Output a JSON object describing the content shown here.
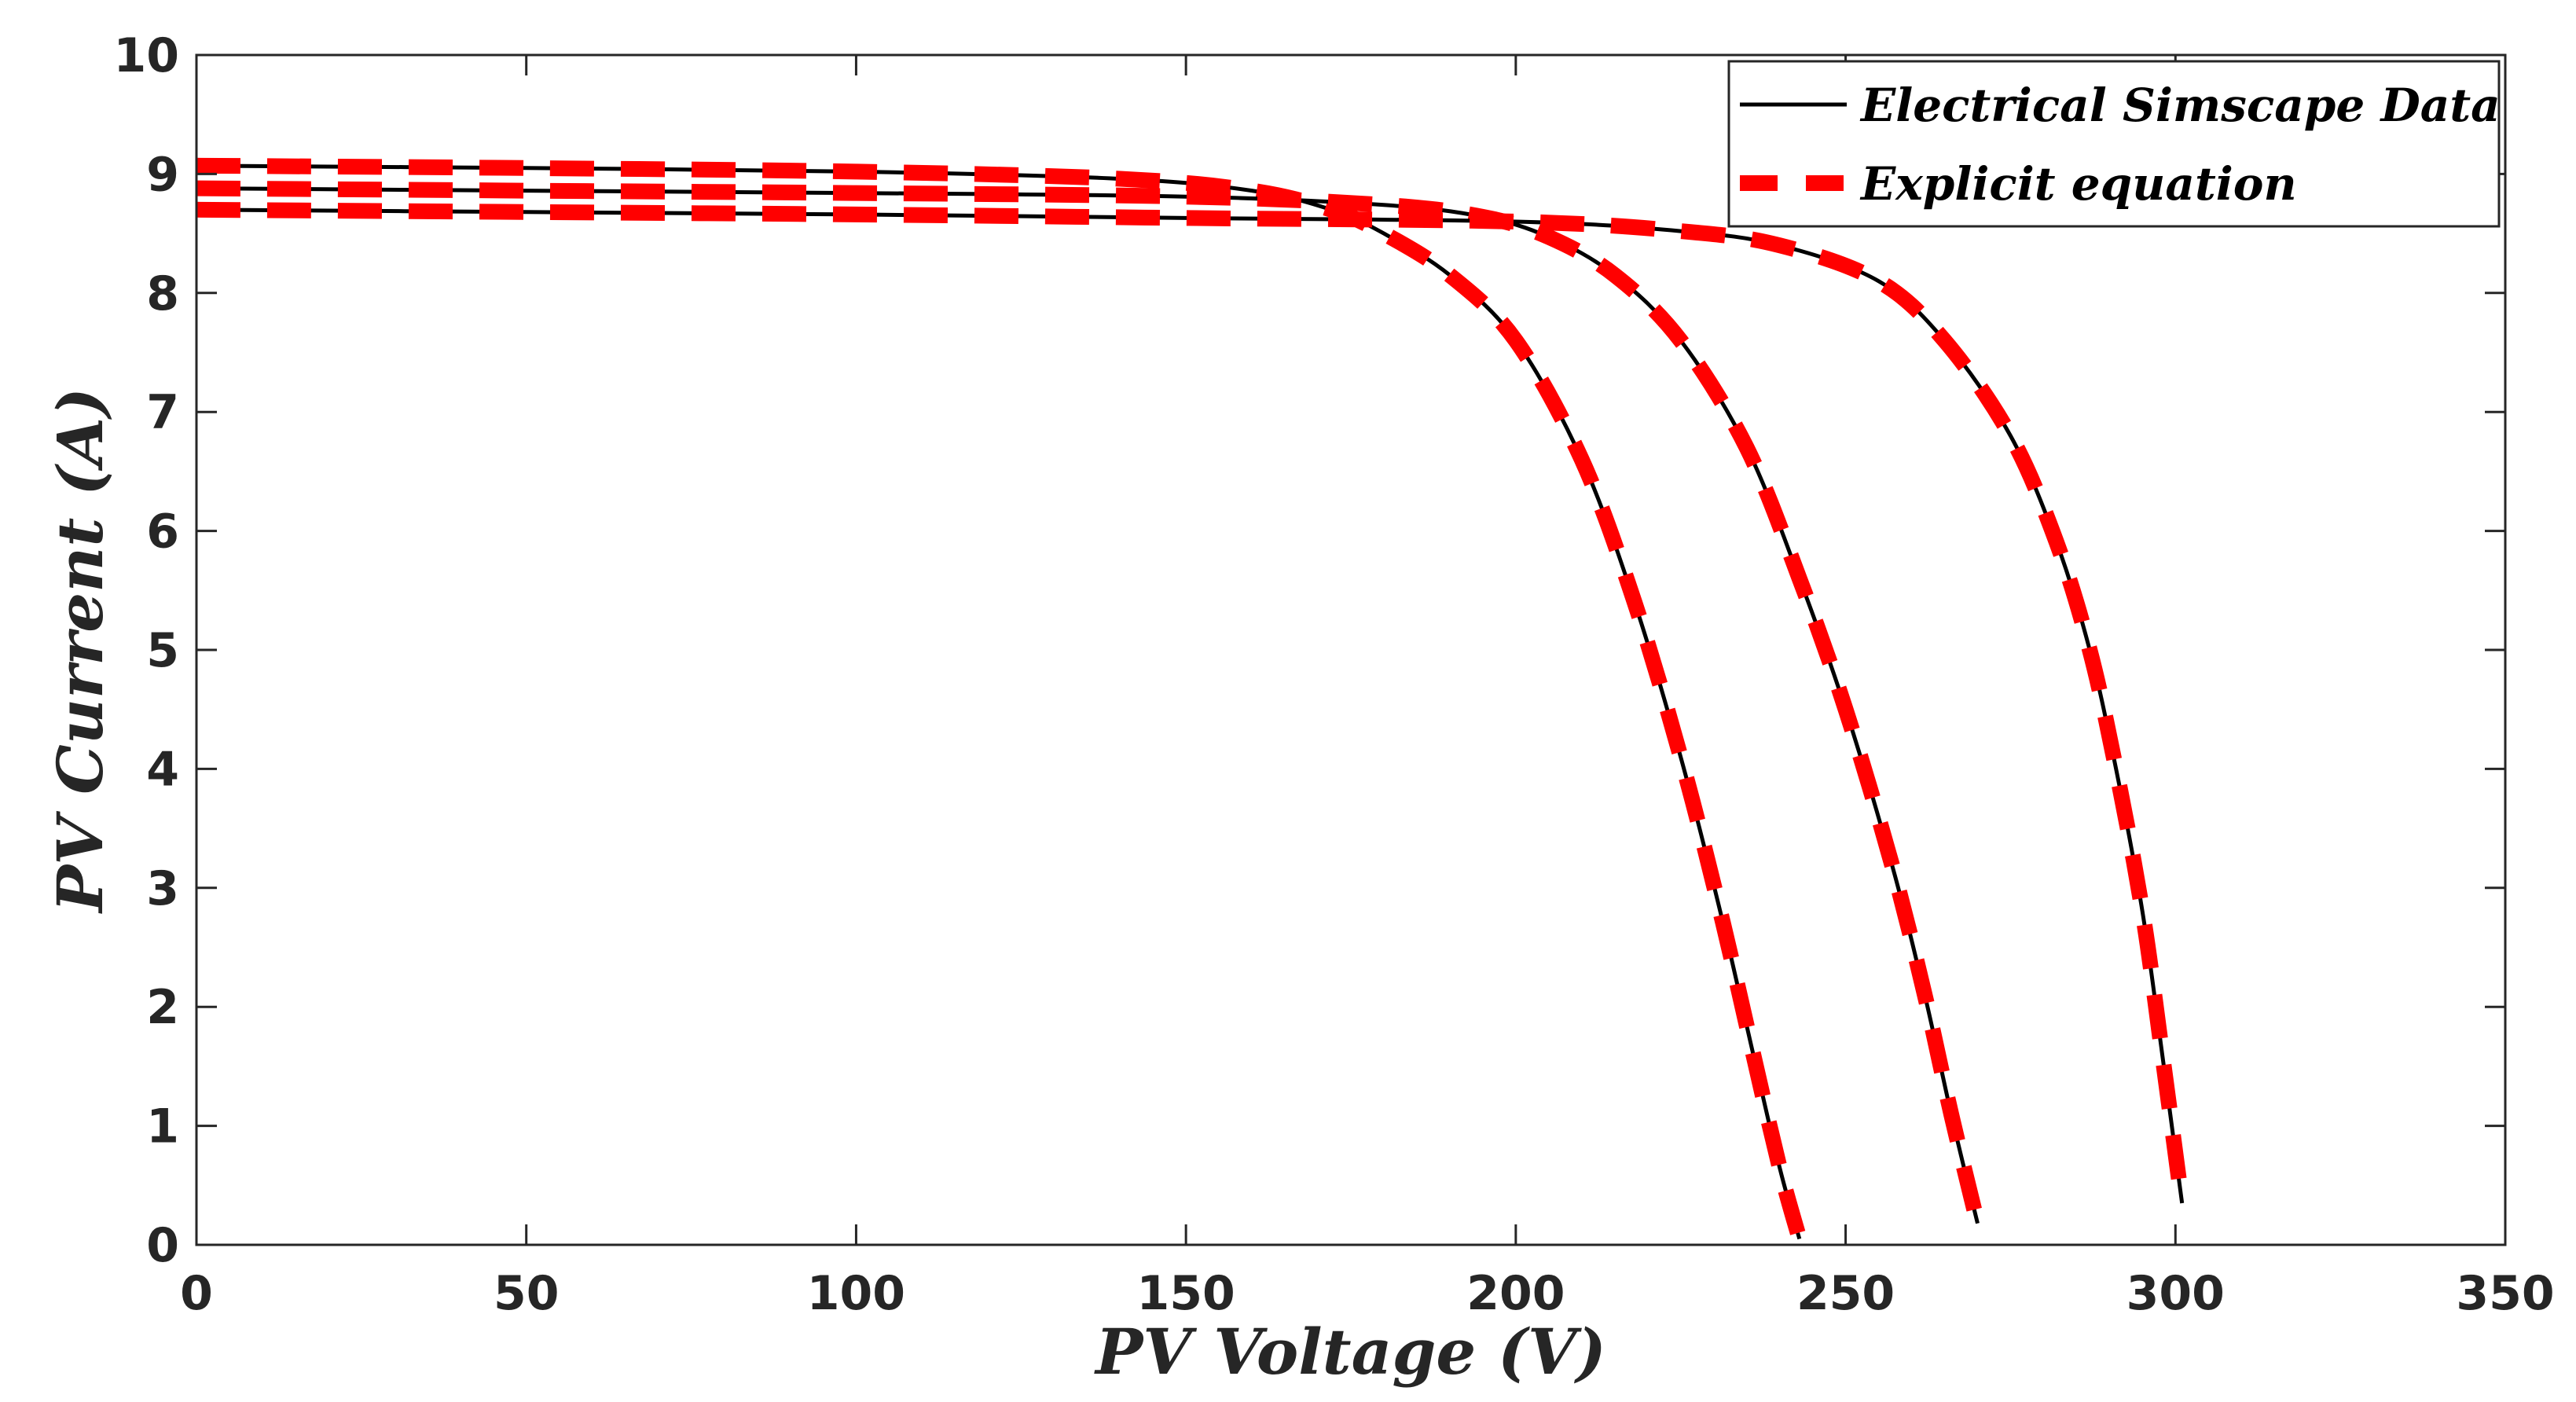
{
  "chart_data": {
    "type": "line",
    "xlabel": "PV Voltage (V)",
    "ylabel": "PV Current (A)",
    "xlim": [
      0,
      350
    ],
    "ylim": [
      0,
      10
    ],
    "xticks": [
      0,
      50,
      100,
      150,
      200,
      250,
      300,
      350
    ],
    "yticks": [
      0,
      1,
      2,
      3,
      4,
      5,
      6,
      7,
      8,
      9,
      10
    ],
    "grid": false,
    "legend_position": "top-right",
    "legend": [
      {
        "label": "Electrical Simscape Data",
        "style": "solid",
        "color": "#000000"
      },
      {
        "label": "Explicit equation",
        "style": "dashed",
        "color": "#ff0000"
      }
    ],
    "curves": [
      {
        "name": "curve-1",
        "points": [
          [
            0,
            9.07
          ],
          [
            50,
            9.05
          ],
          [
            100,
            9.02
          ],
          [
            140,
            8.96
          ],
          [
            160,
            8.86
          ],
          [
            172,
            8.7
          ],
          [
            180,
            8.5
          ],
          [
            190,
            8.15
          ],
          [
            200,
            7.6
          ],
          [
            210,
            6.6
          ],
          [
            218,
            5.4
          ],
          [
            225,
            4.1
          ],
          [
            231,
            2.8
          ],
          [
            236,
            1.6
          ],
          [
            240,
            0.65
          ],
          [
            243,
            0.05
          ]
        ]
      },
      {
        "name": "curve-2",
        "points": [
          [
            0,
            8.88
          ],
          [
            50,
            8.86
          ],
          [
            100,
            8.84
          ],
          [
            150,
            8.81
          ],
          [
            180,
            8.74
          ],
          [
            195,
            8.64
          ],
          [
            205,
            8.47
          ],
          [
            215,
            8.15
          ],
          [
            225,
            7.6
          ],
          [
            235,
            6.7
          ],
          [
            243,
            5.6
          ],
          [
            250,
            4.5
          ],
          [
            257,
            3.2
          ],
          [
            262,
            2.1
          ],
          [
            266,
            1.1
          ],
          [
            270,
            0.18
          ]
        ]
      },
      {
        "name": "curve-3",
        "points": [
          [
            0,
            8.7
          ],
          [
            50,
            8.68
          ],
          [
            100,
            8.66
          ],
          [
            150,
            8.63
          ],
          [
            200,
            8.6
          ],
          [
            225,
            8.52
          ],
          [
            240,
            8.4
          ],
          [
            255,
            8.1
          ],
          [
            265,
            7.6
          ],
          [
            275,
            6.8
          ],
          [
            282,
            5.9
          ],
          [
            287,
            5.0
          ],
          [
            291,
            4.0
          ],
          [
            295,
            2.8
          ],
          [
            298,
            1.6
          ],
          [
            301,
            0.35
          ]
        ]
      }
    ]
  }
}
